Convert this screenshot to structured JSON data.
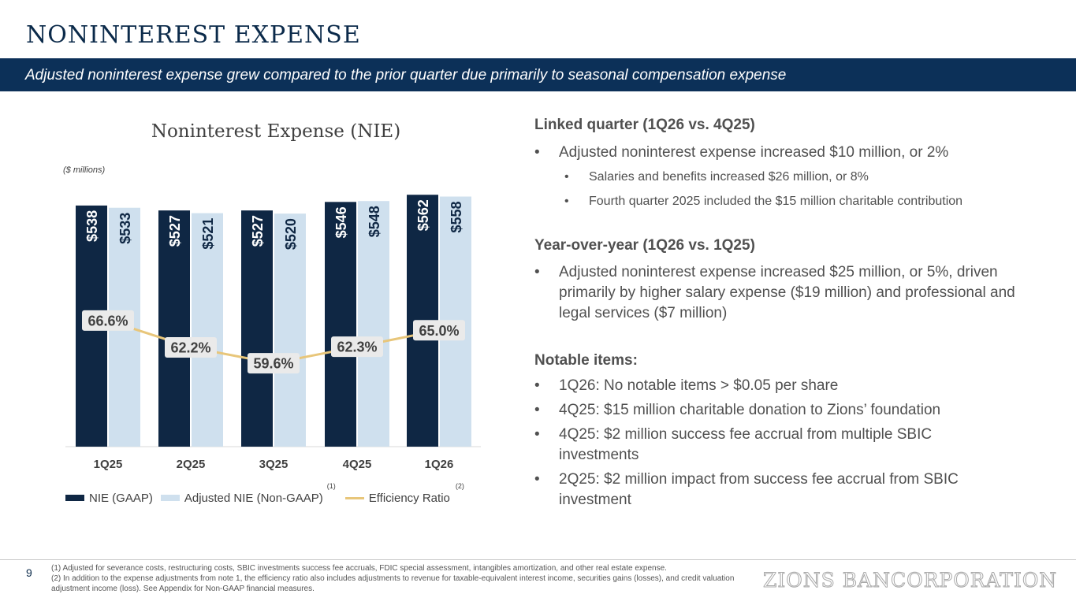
{
  "header": {
    "title": "NONINTEREST EXPENSE",
    "subtitle": "Adjusted noninterest expense grew compared to the prior quarter due primarily to seasonal compensation expense"
  },
  "chart_data": {
    "type": "bar",
    "title": "Noninterest Expense (NIE)",
    "unit_label": "($ millions)",
    "categories": [
      "1Q25",
      "2Q25",
      "3Q25",
      "4Q25",
      "1Q26"
    ],
    "series": [
      {
        "name": "NIE (GAAP)",
        "values": [
          538,
          527,
          527,
          546,
          562
        ],
        "labels": [
          "$538",
          "$527",
          "$527",
          "$546",
          "$562"
        ],
        "color": "#0f2744"
      },
      {
        "name": "Adjusted NIE (Non-GAAP)",
        "values": [
          533,
          521,
          520,
          548,
          558
        ],
        "labels": [
          "$533",
          "$521",
          "$520",
          "$548",
          "$558"
        ],
        "color": "#cfe0ee",
        "label_color": "#0f2744"
      }
    ],
    "line_series": {
      "name": "Efficiency Ratio",
      "values": [
        66.6,
        62.2,
        59.6,
        62.3,
        65.0
      ],
      "labels": [
        "66.6%",
        "62.2%",
        "59.6%",
        "62.3%",
        "65.0%"
      ],
      "color": "#e8c67a",
      "range": [
        40,
        100
      ]
    },
    "ylim": [
      0,
      580
    ],
    "legend": [
      {
        "label": "NIE (GAAP)",
        "footnote": ""
      },
      {
        "label": "Adjusted NIE (Non-GAAP)",
        "footnote": "(1)"
      },
      {
        "label": "Efficiency Ratio",
        "footnote": "(2)"
      }
    ],
    "legend_position": "bottom"
  },
  "commentary": {
    "linked_quarter": {
      "heading": "Linked quarter (1Q26 vs. 4Q25)",
      "bullet": "Adjusted noninterest expense increased $10 million, or 2%",
      "sub_bullets": [
        "Salaries and benefits increased $26 million, or 8%",
        "Fourth quarter 2025 included the $15 million charitable contribution"
      ]
    },
    "year_over_year": {
      "heading": "Year-over-year (1Q26 vs. 1Q25)",
      "bullet": "Adjusted noninterest expense increased $25 million, or 5%, driven primarily by higher salary expense ($19 million) and professional and legal services ($7 million)"
    },
    "notable_items": {
      "heading": "Notable items:",
      "bullets": [
        "1Q26: No notable items > $0.05 per share",
        "4Q25: $15 million charitable donation to Zions’ foundation",
        "4Q25: $2 million success fee accrual from multiple SBIC investments",
        "2Q25: $2 million impact from success fee accrual from SBIC investment"
      ]
    }
  },
  "footer": {
    "page_number": "9",
    "footnote_1": "(1)  Adjusted for severance costs, restructuring costs, SBIC investments success fee accruals, FDIC special assessment, intangibles amortization, and other real estate expense.",
    "footnote_2": "(2)  In addition to the expense adjustments from note 1, the efficiency ratio also includes adjustments to revenue for taxable-equivalent interest income, securities gains (losses), and credit valuation adjustment income (loss). See Appendix for Non-GAAP financial measures.",
    "logo_text": "ZIONS BANCORPORATION"
  }
}
